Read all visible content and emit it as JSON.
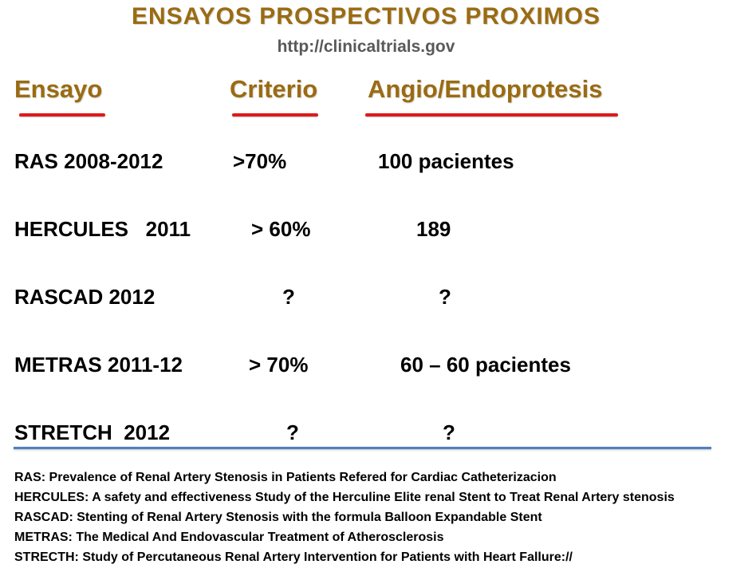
{
  "title": "ENSAYOS  PROSPECTIVOS  PROXIMOS",
  "subtitle": "http://clinicaltrials.gov",
  "headers": {
    "ensayo": "Ensayo",
    "criterio": "Criterio",
    "angio": "Angio/Endoprotesis"
  },
  "rows": [
    {
      "trial": "RAS 2008-2012",
      "criterio": ">70%",
      "angio": "100 pacientes"
    },
    {
      "trial": "HERCULES   2011",
      "criterio": "> 60%",
      "angio": "189"
    },
    {
      "trial": "RASCAD 2012",
      "criterio": "?",
      "angio": "?"
    },
    {
      "trial": "METRAS 2011-12",
      "criterio": "> 70%",
      "angio": "60 – 60 pacientes"
    },
    {
      "trial": "STRETCH  2012",
      "criterio": "?",
      "angio": "?"
    }
  ],
  "notes": [
    {
      "abbr": "RAS:",
      "text": " Prevalence of Renal Artery Stenosis in Patients Refered for Cardiac Catheterizacion"
    },
    {
      "abbr": "HERCULES:",
      "text": " A safety and effectiveness Study of the Herculine Elite renal Stent to  Treat Renal Artery stenosis"
    },
    {
      "abbr": "RASCAD:",
      "text": " Stenting of Renal Artery Stenosis with the formula Balloon Expandable Stent"
    },
    {
      "abbr": "METRAS:",
      "text": " The Medical And Endovascular Treatment of Atherosclerosis"
    },
    {
      "abbr": "STRECTH:",
      "text": " Study of Percutaneous Renal Artery Intervention for Patients with Heart Fallure://"
    }
  ],
  "colors": {
    "title": "#9a6b12",
    "underline": "#e0191c",
    "divider": "#4f81bd",
    "subtitle": "#595959"
  }
}
